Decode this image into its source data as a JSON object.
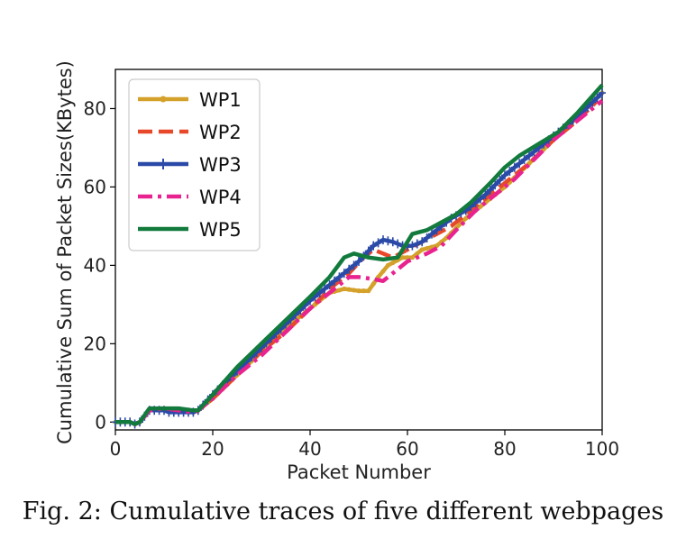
{
  "caption": "Fig. 2: Cumulative traces of five different webpages",
  "chart_data": {
    "type": "line",
    "title": "",
    "xlabel": "Packet Number",
    "ylabel": "Cumulative Sum of Packet Sizes(KBytes)",
    "xlim": [
      0,
      100
    ],
    "ylim": [
      -2,
      90
    ],
    "xticks": [
      0,
      20,
      40,
      60,
      80,
      100
    ],
    "yticks": [
      0,
      20,
      40,
      60,
      80
    ],
    "grid": false,
    "legend_position": "upper-left",
    "series": [
      {
        "name": "WP1",
        "color": "#d4a12a",
        "style": "solid-dotted-markers",
        "points": [
          [
            0,
            0
          ],
          [
            3,
            0
          ],
          [
            4,
            -0.5
          ],
          [
            5,
            0
          ],
          [
            7,
            3
          ],
          [
            10,
            3.5
          ],
          [
            13,
            3
          ],
          [
            16,
            2.5
          ],
          [
            17,
            3
          ],
          [
            20,
            6
          ],
          [
            25,
            12
          ],
          [
            30,
            18
          ],
          [
            35,
            24
          ],
          [
            40,
            29
          ],
          [
            44,
            33
          ],
          [
            47,
            34
          ],
          [
            50,
            33.5
          ],
          [
            52,
            33.5
          ],
          [
            54,
            37
          ],
          [
            56,
            40
          ],
          [
            59,
            42
          ],
          [
            61,
            42
          ],
          [
            63,
            44
          ],
          [
            66,
            45
          ],
          [
            68,
            47
          ],
          [
            72,
            52
          ],
          [
            76,
            56
          ],
          [
            80,
            60
          ],
          [
            85,
            66
          ],
          [
            90,
            72
          ],
          [
            95,
            78
          ],
          [
            100,
            84
          ]
        ]
      },
      {
        "name": "WP2",
        "color": "#e8482a",
        "style": "dashed",
        "points": [
          [
            0,
            0
          ],
          [
            3,
            0
          ],
          [
            4,
            -0.5
          ],
          [
            5,
            0
          ],
          [
            7,
            3
          ],
          [
            10,
            3.5
          ],
          [
            13,
            3
          ],
          [
            16,
            2.5
          ],
          [
            17,
            3
          ],
          [
            20,
            6
          ],
          [
            25,
            12
          ],
          [
            30,
            18
          ],
          [
            35,
            23
          ],
          [
            40,
            29
          ],
          [
            45,
            35
          ],
          [
            48,
            38
          ],
          [
            51,
            42
          ],
          [
            53,
            44
          ],
          [
            55,
            43
          ],
          [
            57,
            42
          ],
          [
            60,
            44
          ],
          [
            63,
            46
          ],
          [
            66,
            48
          ],
          [
            69,
            50
          ],
          [
            72,
            53
          ],
          [
            76,
            57
          ],
          [
            80,
            61
          ],
          [
            85,
            66
          ],
          [
            90,
            72
          ],
          [
            95,
            77
          ],
          [
            99,
            82
          ]
        ]
      },
      {
        "name": "WP3",
        "color": "#2b4aa8",
        "style": "solid-plus-markers",
        "points": [
          [
            0,
            0
          ],
          [
            3,
            0
          ],
          [
            4,
            -0.5
          ],
          [
            5,
            0
          ],
          [
            7,
            3
          ],
          [
            10,
            3
          ],
          [
            11,
            2.5
          ],
          [
            13,
            2.5
          ],
          [
            16,
            2.5
          ],
          [
            17,
            3
          ],
          [
            20,
            7
          ],
          [
            25,
            13
          ],
          [
            30,
            19
          ],
          [
            35,
            25
          ],
          [
            40,
            31
          ],
          [
            45,
            36
          ],
          [
            50,
            41
          ],
          [
            53,
            45
          ],
          [
            55,
            46.5
          ],
          [
            57,
            46
          ],
          [
            59,
            45
          ],
          [
            61,
            45
          ],
          [
            63,
            46
          ],
          [
            66,
            49
          ],
          [
            69,
            52
          ],
          [
            72,
            54
          ],
          [
            76,
            58
          ],
          [
            80,
            63
          ],
          [
            85,
            68
          ],
          [
            90,
            73
          ],
          [
            95,
            78
          ],
          [
            100,
            84
          ]
        ]
      },
      {
        "name": "WP4",
        "color": "#e8238f",
        "style": "dashdot",
        "points": [
          [
            0,
            0
          ],
          [
            3,
            0
          ],
          [
            4,
            -0.5
          ],
          [
            5,
            0
          ],
          [
            7,
            3
          ],
          [
            10,
            3.5
          ],
          [
            13,
            3
          ],
          [
            16,
            2.5
          ],
          [
            17,
            3
          ],
          [
            20,
            6
          ],
          [
            25,
            12
          ],
          [
            30,
            17
          ],
          [
            35,
            23
          ],
          [
            40,
            29
          ],
          [
            45,
            34
          ],
          [
            48,
            37
          ],
          [
            50,
            37
          ],
          [
            53,
            36.5
          ],
          [
            55,
            36
          ],
          [
            57,
            38
          ],
          [
            60,
            41
          ],
          [
            64,
            43
          ],
          [
            67,
            45
          ],
          [
            70,
            49
          ],
          [
            74,
            54
          ],
          [
            78,
            58
          ],
          [
            82,
            62
          ],
          [
            86,
            67
          ],
          [
            90,
            72
          ],
          [
            95,
            77
          ],
          [
            100,
            82
          ]
        ]
      },
      {
        "name": "WP5",
        "color": "#127a3c",
        "style": "solid",
        "points": [
          [
            0,
            0
          ],
          [
            3,
            0
          ],
          [
            4,
            -0.5
          ],
          [
            5,
            0
          ],
          [
            7,
            3.5
          ],
          [
            10,
            3.5
          ],
          [
            13,
            3.5
          ],
          [
            16,
            3
          ],
          [
            17,
            3
          ],
          [
            20,
            7
          ],
          [
            25,
            14
          ],
          [
            30,
            20
          ],
          [
            35,
            26
          ],
          [
            40,
            32
          ],
          [
            44,
            37
          ],
          [
            47,
            42
          ],
          [
            49,
            43
          ],
          [
            52,
            42
          ],
          [
            55,
            41.5
          ],
          [
            58,
            42
          ],
          [
            61,
            48
          ],
          [
            64,
            49
          ],
          [
            67,
            51
          ],
          [
            70,
            53
          ],
          [
            73,
            56
          ],
          [
            77,
            61
          ],
          [
            80,
            65
          ],
          [
            83,
            68
          ],
          [
            87,
            71
          ],
          [
            91,
            74
          ],
          [
            95,
            79
          ],
          [
            100,
            86
          ]
        ]
      }
    ]
  }
}
